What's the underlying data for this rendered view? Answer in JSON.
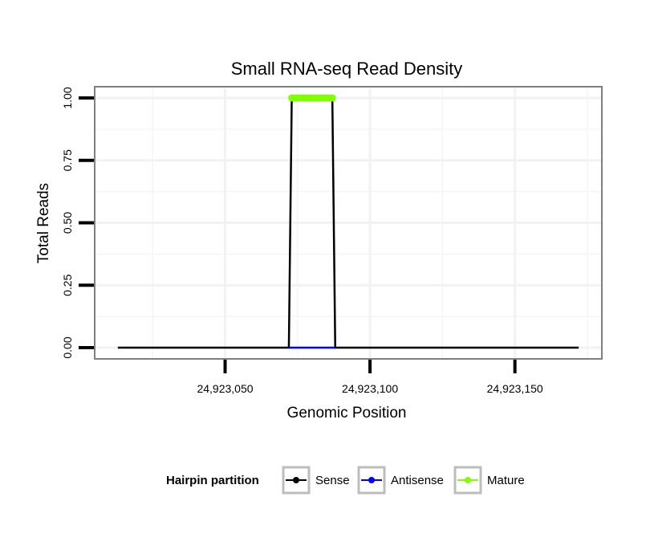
{
  "chart_data": {
    "type": "line",
    "title": "Small RNA-seq Read Density",
    "xlabel": "Genomic Position",
    "ylabel": "Total Reads",
    "xlim": [
      24923005,
      24923180
    ],
    "ylim": [
      -0.045,
      1.045
    ],
    "grid": true,
    "x_ticks": [
      {
        "value": 24923050,
        "label": "24,923,050"
      },
      {
        "value": 24923100,
        "label": "24,923,100"
      },
      {
        "value": 24923150,
        "label": "24,923,150"
      }
    ],
    "y_ticks": [
      {
        "value": 0.0,
        "label": "0.00"
      },
      {
        "value": 0.25,
        "label": "0.25"
      },
      {
        "value": 0.5,
        "label": "0.50"
      },
      {
        "value": 0.75,
        "label": "0.75"
      },
      {
        "value": 1.0,
        "label": "1.00"
      }
    ],
    "legend": {
      "title": "Hairpin partition",
      "position": "bottom"
    },
    "series": [
      {
        "name": "Sense",
        "color": "#000000",
        "x": [
          24923013,
          24923072,
          24923073,
          24923087,
          24923088,
          24923172
        ],
        "y": [
          0,
          0,
          1,
          1,
          0,
          0
        ]
      },
      {
        "name": "Antisense",
        "color": "#0000ff",
        "x": [
          24923072,
          24923088
        ],
        "y": [
          0,
          0
        ]
      },
      {
        "name": "Mature",
        "color": "#7fff00",
        "x": [
          24923073,
          24923074,
          24923075,
          24923076,
          24923077,
          24923078,
          24923079,
          24923080,
          24923081,
          24923082,
          24923083,
          24923084,
          24923085,
          24923086,
          24923087
        ],
        "y": [
          1,
          1,
          1,
          1,
          1,
          1,
          1,
          1,
          1,
          1,
          1,
          1,
          1,
          1,
          1
        ]
      }
    ]
  }
}
